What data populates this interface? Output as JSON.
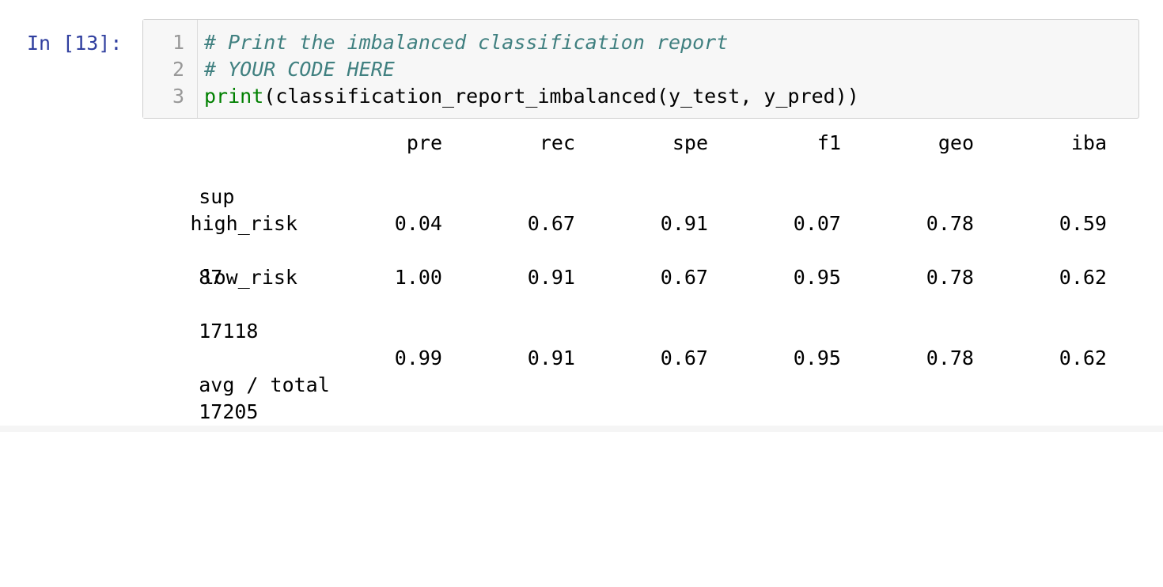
{
  "cell": {
    "prompt": "In [13]:",
    "code_lines": [
      {
        "num": "1",
        "type": "comment",
        "text": "# Print the imbalanced classification report"
      },
      {
        "num": "2",
        "type": "comment",
        "text": "# YOUR CODE HERE"
      },
      {
        "num": "3",
        "type": "call",
        "builtin": "print",
        "rest": "(classification_report_imbalanced(y_test, y_pred))"
      }
    ]
  },
  "output": {
    "headers": [
      "pre",
      "rec",
      "spe",
      "f1",
      "geo",
      "iba"
    ],
    "header_wrap": "sup",
    "rows": [
      {
        "label": "high_risk",
        "values": [
          "0.04",
          "0.67",
          "0.91",
          "0.07",
          "0.78",
          "0.59"
        ],
        "wrap": "87"
      },
      {
        "label": "low_risk",
        "values": [
          "1.00",
          "0.91",
          "0.67",
          "0.95",
          "0.78",
          "0.62"
        ],
        "wrap": "17118"
      }
    ],
    "total": {
      "label": "avg / total",
      "values": [
        "0.99",
        "0.91",
        "0.67",
        "0.95",
        "0.78",
        "0.62"
      ],
      "wrap": "17205"
    }
  }
}
